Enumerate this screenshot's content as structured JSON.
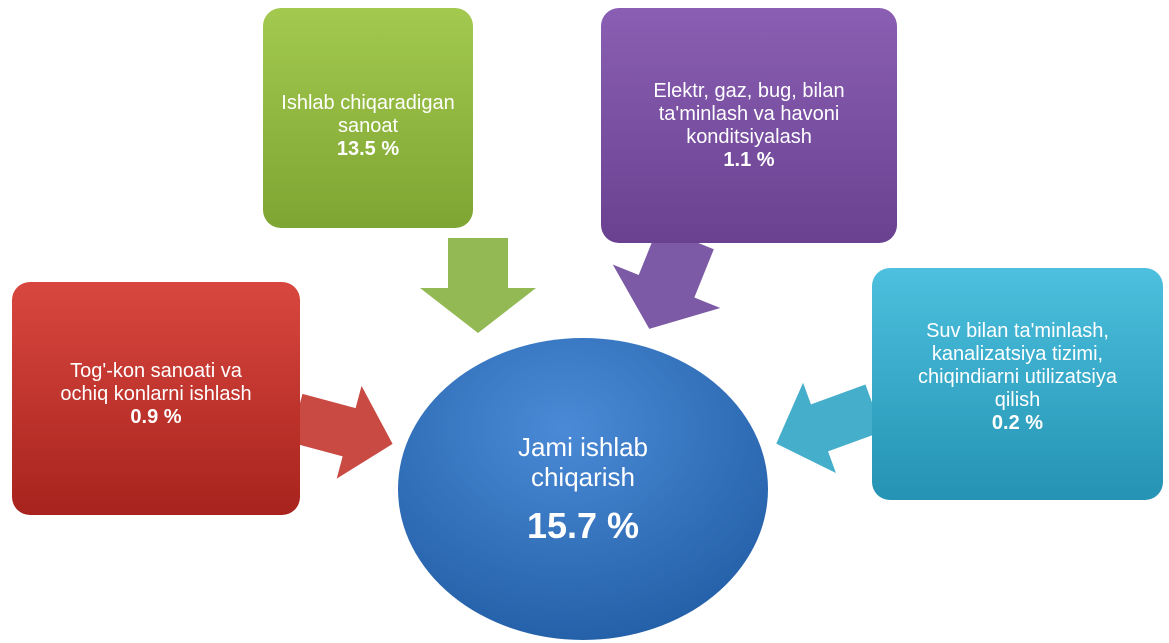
{
  "nodes": [
    {
      "lines": [
        "Ishlab chiqaradigan",
        "sanoat"
      ],
      "value": "13.5 %"
    },
    {
      "lines": [
        "Elektr, gaz, bug, bilan",
        "ta'minlash va havoni",
        "konditsiyalash"
      ],
      "value": "1.1 %"
    },
    {
      "lines": [
        "Tog'-kon sanoati va",
        "ochiq konlarni ishlash"
      ],
      "value": "0.9 %"
    },
    {
      "lines": [
        "Suv bilan ta'minlash,",
        "kanalizatsiya tizimi,",
        "chiqindiarni utilizatsiya",
        "qilish"
      ],
      "value": "0.2 %"
    }
  ],
  "center": {
    "lines": [
      "Jami ishlab",
      "chiqarish"
    ],
    "value": "15.7 %"
  }
}
